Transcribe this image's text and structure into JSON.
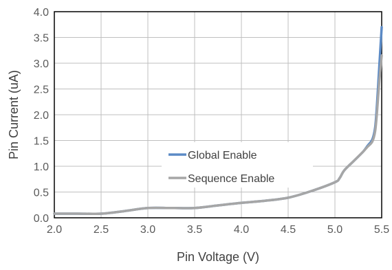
{
  "chart_data": {
    "type": "line",
    "title": "",
    "xlabel": "Pin Voltage (V)",
    "ylabel": "Pin Current (uA)",
    "xlim": [
      2.0,
      5.5
    ],
    "ylim": [
      0.0,
      4.0
    ],
    "xticks": [
      "2.0",
      "2.5",
      "3.0",
      "3.5",
      "4.0",
      "4.5",
      "5.0",
      "5.5"
    ],
    "yticks": [
      "0.0",
      "0.5",
      "1.0",
      "1.5",
      "2.0",
      "2.5",
      "3.0",
      "3.5",
      "4.0"
    ],
    "grid": true,
    "legend": "lower-right inside plot",
    "series": [
      {
        "name": "Global Enable",
        "color": "#5b8ac5",
        "x": [
          2.0,
          2.25,
          2.5,
          2.75,
          3.0,
          3.25,
          3.5,
          3.75,
          4.0,
          4.25,
          4.5,
          4.75,
          5.0,
          5.05,
          5.1,
          5.2,
          5.3,
          5.35,
          5.4,
          5.43,
          5.45,
          5.47,
          5.49,
          5.5
        ],
        "y": [
          0.08,
          0.08,
          0.08,
          0.13,
          0.19,
          0.19,
          0.19,
          0.24,
          0.29,
          0.33,
          0.39,
          0.52,
          0.69,
          0.77,
          0.92,
          1.1,
          1.28,
          1.4,
          1.52,
          1.75,
          2.2,
          2.8,
          3.4,
          3.7
        ]
      },
      {
        "name": "Sequence Enable",
        "color": "#a6a6a6",
        "x": [
          2.0,
          2.25,
          2.5,
          2.75,
          3.0,
          3.25,
          3.5,
          3.75,
          4.0,
          4.25,
          4.5,
          4.75,
          5.0,
          5.05,
          5.1,
          5.2,
          5.3,
          5.35,
          5.4,
          5.43,
          5.45,
          5.47,
          5.49,
          5.5
        ],
        "y": [
          0.08,
          0.08,
          0.08,
          0.13,
          0.19,
          0.19,
          0.19,
          0.24,
          0.29,
          0.33,
          0.39,
          0.52,
          0.69,
          0.77,
          0.92,
          1.1,
          1.28,
          1.38,
          1.48,
          1.68,
          2.05,
          2.55,
          2.95,
          3.15
        ]
      }
    ]
  }
}
